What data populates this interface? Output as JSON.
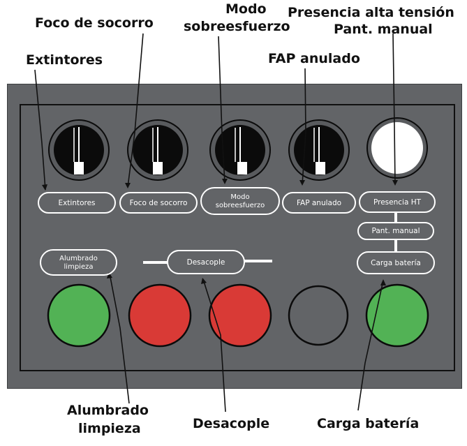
{
  "callouts": {
    "foco_de_socorro": "Foco de socorro",
    "modo_line1": "Modo",
    "modo_line2": "sobreesfuerzo",
    "presencia_alta_tension": "Presencia alta tensión",
    "pant_manual": "Pant. manual",
    "extintores": "Extintores",
    "fap_anulado": "FAP anulado",
    "alumbrado_line1": "Alumbrado",
    "alumbrado_line2": "limpieza",
    "desacople": "Desacople",
    "carga_bateria": "Carga batería"
  },
  "panel_labels": {
    "extintores": "Extintores",
    "foco_de_socorro": "Foco de socorro",
    "modo_line1": "Modo",
    "modo_line2": "sobreesfuerzo",
    "fap_anulado": "FAP anulado",
    "presencia_ht": "Presencia HT",
    "pant_manual": "Pant. manual",
    "alumbrado_line1": "Alumbrado",
    "alumbrado_line2": "limpieza",
    "desacople": "Desacople",
    "carga_bateria": "Carga batería"
  },
  "colors": {
    "panel": "#626467",
    "indicator_black": "#0b0b0b",
    "indicator_lit": "#ffffff",
    "button_green": "#52b255",
    "button_red": "#d93a36",
    "button_off": "#626467",
    "label_border": "#ffffff"
  },
  "indicators": [
    {
      "name": "indicator-extintores",
      "lit": false
    },
    {
      "name": "indicator-foco-de-socorro",
      "lit": false
    },
    {
      "name": "indicator-modo-sobreesfuerzo",
      "lit": false
    },
    {
      "name": "indicator-fap-anulado",
      "lit": false
    },
    {
      "name": "indicator-presencia-ht",
      "lit": true
    }
  ],
  "buttons": [
    {
      "name": "button-alumbrado-limpieza",
      "color": "green"
    },
    {
      "name": "button-desacople-left",
      "color": "red"
    },
    {
      "name": "button-desacople-right",
      "color": "red"
    },
    {
      "name": "button-empty",
      "color": "off"
    },
    {
      "name": "button-carga-bateria",
      "color": "green"
    }
  ]
}
